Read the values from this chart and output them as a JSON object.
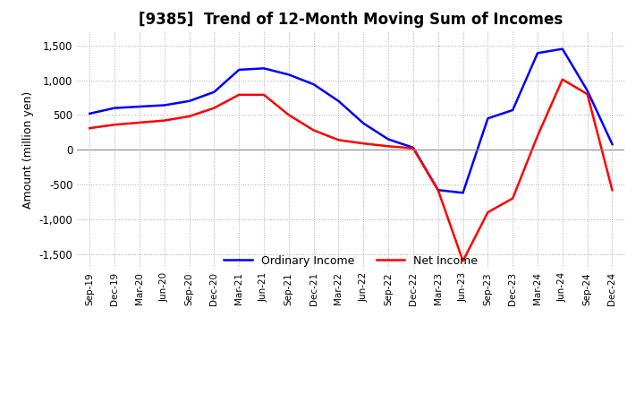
{
  "title": "[9385]  Trend of 12-Month Moving Sum of Incomes",
  "ylabel": "Amount (million yen)",
  "x_labels": [
    "Sep-19",
    "Dec-19",
    "Mar-20",
    "Jun-20",
    "Sep-20",
    "Dec-20",
    "Mar-21",
    "Jun-21",
    "Sep-21",
    "Dec-21",
    "Mar-22",
    "Jun-22",
    "Sep-22",
    "Dec-22",
    "Mar-23",
    "Jun-23",
    "Sep-23",
    "Dec-23",
    "Mar-24",
    "Jun-24",
    "Sep-24",
    "Dec-24"
  ],
  "ordinary_income": [
    520,
    600,
    620,
    640,
    700,
    830,
    1150,
    1170,
    1080,
    940,
    700,
    380,
    150,
    30,
    -580,
    -620,
    450,
    570,
    1390,
    1450,
    850,
    80
  ],
  "net_income": [
    310,
    360,
    390,
    420,
    480,
    600,
    790,
    790,
    500,
    280,
    140,
    90,
    50,
    20,
    -580,
    -1600,
    -900,
    -700,
    200,
    1010,
    800,
    -580
  ],
  "ordinary_color": "#0000ff",
  "net_color": "#ff0000",
  "ylim": [
    -1700,
    1700
  ],
  "yticks": [
    -1500,
    -1000,
    -500,
    0,
    500,
    1000,
    1500
  ],
  "grid_color": "#aaaaaa",
  "background_color": "#ffffff",
  "title_fontsize": 12,
  "legend_labels": [
    "Ordinary Income",
    "Net Income"
  ]
}
